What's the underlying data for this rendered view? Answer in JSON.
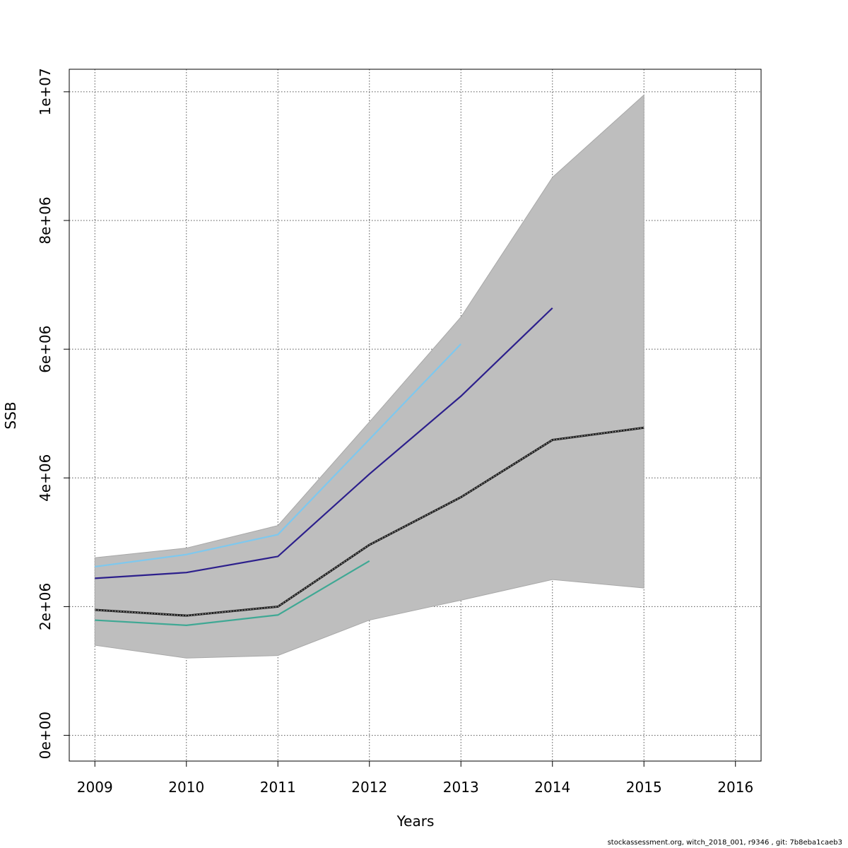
{
  "chart_data": {
    "type": "line",
    "xlabel": "Years",
    "ylabel": "SSB",
    "xlim": [
      2008.72,
      2016.28
    ],
    "ylim": [
      -400000,
      10350000
    ],
    "x_ticks": [
      2009,
      2010,
      2011,
      2012,
      2013,
      2014,
      2015,
      2016
    ],
    "y_ticks": [
      0,
      2000000,
      4000000,
      6000000,
      8000000,
      10000000
    ],
    "y_tick_labels": [
      "0e+00",
      "2e+06",
      "4e+06",
      "6e+06",
      "8e+06",
      "1e+07"
    ],
    "grid": true,
    "confidence_band": {
      "x": [
        2009,
        2010,
        2011,
        2012,
        2013,
        2014,
        2015
      ],
      "lower": [
        1400000,
        1200000,
        1240000,
        1790000,
        2100000,
        2420000,
        2290000
      ],
      "upper": [
        2760000,
        2910000,
        3260000,
        4870000,
        6500000,
        8670000,
        9950000
      ],
      "color": "#bebebe"
    },
    "series": [
      {
        "x": [
          2009,
          2010,
          2011,
          2012,
          2013,
          2014,
          2015
        ],
        "values": [
          1950000,
          1860000,
          2000000,
          2960000,
          3700000,
          4590000,
          4780000
        ],
        "color": "#1a1a1a",
        "dashed": true
      },
      {
        "x": [
          2009,
          2010,
          2011,
          2012,
          2013,
          2014
        ],
        "values": [
          2440000,
          2530000,
          2780000,
          4060000,
          5270000,
          6640000
        ],
        "color": "#2c1f8c",
        "dashed": false
      },
      {
        "x": [
          2009,
          2010,
          2011,
          2012,
          2013
        ],
        "values": [
          2620000,
          2810000,
          3120000,
          4600000,
          6080000
        ],
        "color": "#7ec8ee",
        "dashed": false
      },
      {
        "x": [
          2009,
          2010,
          2011,
          2012
        ],
        "values": [
          1790000,
          1710000,
          1870000,
          2710000
        ],
        "color": "#3fa894",
        "dashed": false
      }
    ]
  },
  "footer": "stockassessment.org, witch_2018_001, r9346 , git: 7b8eba1caeb3"
}
